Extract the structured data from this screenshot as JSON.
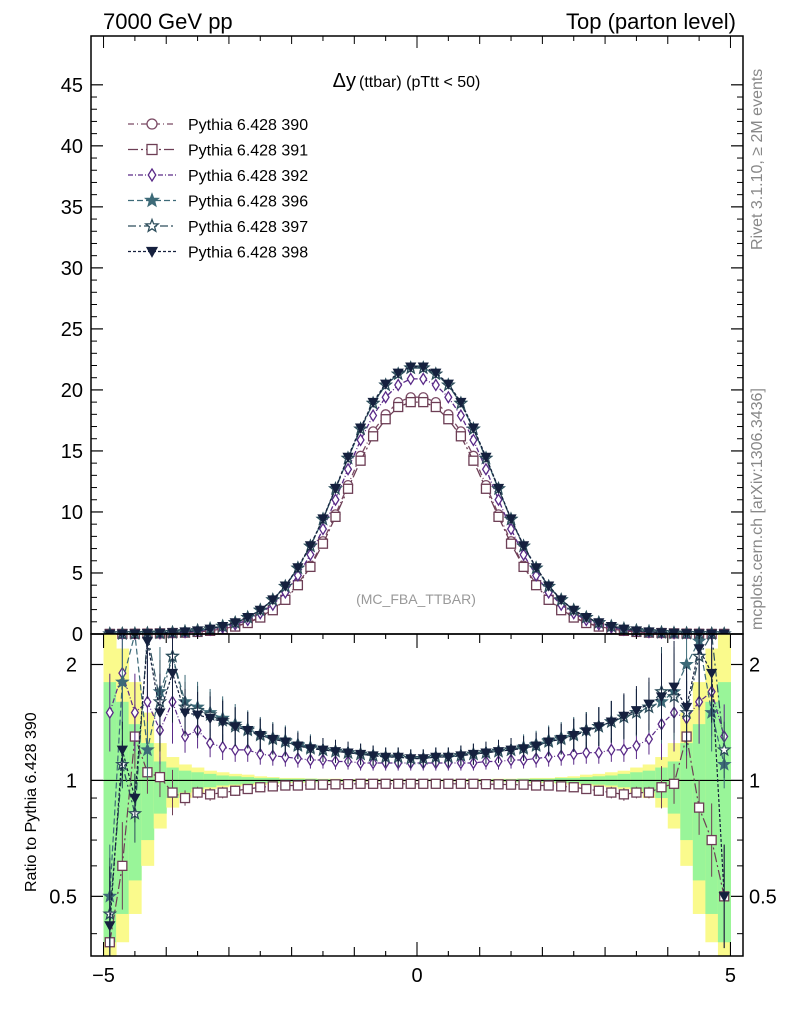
{
  "header": {
    "left": "7000 GeV pp",
    "right": "Top (parton level)"
  },
  "side": {
    "rivet": "Rivet 3.1.10, ≥ 2M events",
    "mcplots": "mcplots.cern.ch [arXiv:1306.3436]"
  },
  "chart_data": [
    {
      "type": "line",
      "title": "Δy (ttbar) (pTtt < 50)",
      "title_main": "Δy",
      "title_sub": "(ttbar) (pTtt < 50)",
      "watermark": "(MC_FBA_TTBAR)",
      "xlim": [
        -5.2,
        5.2
      ],
      "ylim": [
        0,
        49
      ],
      "xticks": [
        -5,
        0,
        5
      ],
      "yticks": [
        0,
        5,
        10,
        15,
        20,
        25,
        30,
        35,
        40,
        45
      ],
      "ytick_labels": [
        "0",
        "5",
        "10",
        "15",
        "20",
        "25",
        "30",
        "35",
        "40",
        "45"
      ],
      "legend_position": "top-left",
      "x": [
        -4.9,
        -4.7,
        -4.5,
        -4.3,
        -4.1,
        -3.9,
        -3.7,
        -3.5,
        -3.3,
        -3.1,
        -2.9,
        -2.7,
        -2.5,
        -2.3,
        -2.1,
        -1.9,
        -1.7,
        -1.5,
        -1.3,
        -1.1,
        -0.9,
        -0.7,
        -0.5,
        -0.3,
        -0.1,
        0.1,
        0.3,
        0.5,
        0.7,
        0.9,
        1.1,
        1.3,
        1.5,
        1.7,
        1.9,
        2.1,
        2.3,
        2.5,
        2.7,
        2.9,
        3.1,
        3.3,
        3.5,
        3.7,
        3.9,
        4.1,
        4.3,
        4.5,
        4.7,
        4.9
      ],
      "series": [
        {
          "name": "Pythia 6.428 390",
          "color": "#7a4a64",
          "marker": "circle-open",
          "dash": "6,3,1,3",
          "values": [
            0.01,
            0.01,
            0.02,
            0.03,
            0.05,
            0.08,
            0.12,
            0.18,
            0.27,
            0.42,
            0.63,
            0.93,
            1.4,
            2.0,
            2.9,
            4.1,
            5.6,
            7.6,
            9.8,
            12.2,
            14.6,
            16.6,
            18.0,
            19.0,
            19.4,
            19.4,
            19.0,
            18.0,
            16.6,
            14.6,
            12.2,
            9.8,
            7.6,
            5.6,
            4.1,
            2.9,
            2.0,
            1.4,
            0.93,
            0.63,
            0.42,
            0.27,
            0.18,
            0.12,
            0.08,
            0.05,
            0.03,
            0.02,
            0.01,
            0.01
          ]
        },
        {
          "name": "Pythia 6.428 391",
          "color": "#6d3e55",
          "marker": "square-open",
          "dash": "10,3,2,3",
          "values": [
            0.01,
            0.01,
            0.02,
            0.03,
            0.05,
            0.08,
            0.11,
            0.17,
            0.26,
            0.4,
            0.61,
            0.9,
            1.35,
            1.95,
            2.8,
            4.0,
            5.5,
            7.4,
            9.6,
            11.9,
            14.2,
            16.2,
            17.6,
            18.6,
            19.0,
            19.0,
            18.6,
            17.6,
            16.2,
            14.2,
            11.9,
            9.6,
            7.4,
            5.5,
            4.0,
            2.8,
            1.95,
            1.35,
            0.9,
            0.61,
            0.4,
            0.26,
            0.17,
            0.11,
            0.08,
            0.05,
            0.03,
            0.02,
            0.01,
            0.01
          ]
        },
        {
          "name": "Pythia 6.428 392",
          "color": "#5a2a88",
          "marker": "diamond-open",
          "dash": "5,2,1,2",
          "values": [
            0.01,
            0.01,
            0.02,
            0.04,
            0.06,
            0.1,
            0.15,
            0.23,
            0.35,
            0.53,
            0.79,
            1.15,
            1.7,
            2.4,
            3.4,
            4.8,
            6.5,
            8.6,
            11.0,
            13.5,
            15.9,
            17.9,
            19.4,
            20.4,
            20.9,
            20.9,
            20.4,
            19.4,
            17.9,
            15.9,
            13.5,
            11.0,
            8.6,
            6.5,
            4.8,
            3.4,
            2.4,
            1.7,
            1.15,
            0.79,
            0.53,
            0.35,
            0.23,
            0.15,
            0.1,
            0.06,
            0.04,
            0.02,
            0.01,
            0.01
          ]
        },
        {
          "name": "Pythia 6.428 396",
          "color": "#3d6a78",
          "marker": "star-filled",
          "dash": "6,3",
          "values": [
            0.01,
            0.02,
            0.03,
            0.05,
            0.08,
            0.12,
            0.19,
            0.28,
            0.42,
            0.63,
            0.93,
            1.35,
            1.95,
            2.8,
            3.9,
            5.4,
            7.2,
            9.4,
            11.9,
            14.4,
            16.8,
            18.9,
            20.4,
            21.3,
            21.8,
            21.8,
            21.3,
            20.4,
            18.9,
            16.8,
            14.4,
            11.9,
            9.4,
            7.2,
            5.4,
            3.9,
            2.8,
            1.95,
            1.35,
            0.93,
            0.63,
            0.42,
            0.28,
            0.19,
            0.12,
            0.08,
            0.05,
            0.03,
            0.02,
            0.01
          ]
        },
        {
          "name": "Pythia 6.428 397",
          "color": "#2e4e5c",
          "marker": "star-open",
          "dash": "8,3,2,3",
          "values": [
            0.01,
            0.02,
            0.03,
            0.05,
            0.08,
            0.12,
            0.19,
            0.28,
            0.42,
            0.63,
            0.93,
            1.36,
            1.96,
            2.8,
            3.9,
            5.4,
            7.2,
            9.4,
            11.9,
            14.4,
            16.8,
            18.9,
            20.4,
            21.3,
            21.8,
            21.8,
            21.3,
            20.4,
            18.9,
            16.8,
            14.4,
            11.9,
            9.4,
            7.2,
            5.4,
            3.9,
            2.8,
            1.96,
            1.36,
            0.93,
            0.63,
            0.42,
            0.28,
            0.19,
            0.12,
            0.08,
            0.05,
            0.03,
            0.02,
            0.01
          ]
        },
        {
          "name": "Pythia 6.428 398",
          "color": "#15203e",
          "marker": "triangle-down-filled",
          "dash": "3,2",
          "values": [
            0.01,
            0.02,
            0.03,
            0.05,
            0.08,
            0.12,
            0.19,
            0.28,
            0.42,
            0.63,
            0.94,
            1.37,
            1.97,
            2.82,
            3.95,
            5.45,
            7.25,
            9.45,
            11.95,
            14.5,
            16.9,
            19.0,
            20.5,
            21.4,
            21.9,
            21.9,
            21.4,
            20.5,
            19.0,
            16.9,
            14.5,
            11.95,
            9.45,
            7.25,
            5.45,
            3.95,
            2.82,
            1.97,
            1.37,
            0.94,
            0.63,
            0.42,
            0.28,
            0.19,
            0.12,
            0.08,
            0.05,
            0.03,
            0.02,
            0.01
          ]
        }
      ]
    },
    {
      "type": "line",
      "ylabel": "Ratio to Pythia 6.428 390",
      "xlim": [
        -5.2,
        5.2
      ],
      "ylim": [
        0.35,
        2.4
      ],
      "log_y": true,
      "xticks": [
        -5,
        0,
        5
      ],
      "xtick_labels": [
        "−5",
        "0",
        "5"
      ],
      "yticks": [
        0.5,
        1,
        2
      ],
      "ytick_labels": [
        "0.5",
        "1",
        "2"
      ],
      "band_colors": {
        "inner": "#99f599",
        "outer": "#fafa8c"
      },
      "band": {
        "inner_lo": [
          0.38,
          0.45,
          0.55,
          0.7,
          0.82,
          0.9,
          0.93,
          0.95,
          0.96,
          0.97,
          0.975,
          0.98,
          0.985,
          0.985,
          0.99,
          0.99,
          0.99,
          0.992,
          0.993,
          0.994,
          0.995,
          0.995,
          0.996,
          0.996,
          0.996,
          0.996,
          0.996,
          0.996,
          0.995,
          0.995,
          0.994,
          0.993,
          0.992,
          0.99,
          0.99,
          0.99,
          0.985,
          0.985,
          0.98,
          0.975,
          0.97,
          0.96,
          0.95,
          0.93,
          0.9,
          0.82,
          0.7,
          0.55,
          0.45,
          0.38
        ],
        "inner_hi": [
          1.8,
          1.6,
          1.4,
          1.25,
          1.12,
          1.08,
          1.06,
          1.05,
          1.04,
          1.03,
          1.025,
          1.02,
          1.015,
          1.015,
          1.01,
          1.01,
          1.01,
          1.008,
          1.007,
          1.006,
          1.005,
          1.005,
          1.004,
          1.004,
          1.004,
          1.004,
          1.004,
          1.004,
          1.005,
          1.005,
          1.006,
          1.007,
          1.008,
          1.01,
          1.01,
          1.01,
          1.015,
          1.015,
          1.02,
          1.025,
          1.03,
          1.04,
          1.05,
          1.06,
          1.08,
          1.12,
          1.25,
          1.4,
          1.6,
          1.8
        ],
        "outer_lo": [
          0.3,
          0.38,
          0.45,
          0.6,
          0.75,
          0.85,
          0.9,
          0.93,
          0.95,
          0.96,
          0.965,
          0.97,
          0.975,
          0.98,
          0.985,
          0.985,
          0.988,
          0.99,
          0.99,
          0.992,
          0.992,
          0.993,
          0.994,
          0.994,
          0.995,
          0.995,
          0.994,
          0.994,
          0.993,
          0.992,
          0.992,
          0.99,
          0.99,
          0.988,
          0.985,
          0.985,
          0.98,
          0.975,
          0.97,
          0.965,
          0.96,
          0.95,
          0.93,
          0.9,
          0.85,
          0.75,
          0.6,
          0.45,
          0.38,
          0.3
        ],
        "outer_hi": [
          2.4,
          2.2,
          1.8,
          1.5,
          1.25,
          1.15,
          1.1,
          1.08,
          1.06,
          1.05,
          1.04,
          1.035,
          1.025,
          1.02,
          1.015,
          1.015,
          1.012,
          1.01,
          1.01,
          1.008,
          1.008,
          1.007,
          1.006,
          1.006,
          1.005,
          1.005,
          1.006,
          1.006,
          1.007,
          1.008,
          1.008,
          1.01,
          1.01,
          1.012,
          1.015,
          1.015,
          1.02,
          1.025,
          1.035,
          1.04,
          1.05,
          1.06,
          1.08,
          1.1,
          1.15,
          1.25,
          1.5,
          1.8,
          2.2,
          2.4
        ]
      },
      "series": [
        {
          "name": "Pythia 6.428 390",
          "values": [
            1,
            1,
            1,
            1,
            1,
            1,
            1,
            1,
            1,
            1,
            1,
            1,
            1,
            1,
            1,
            1,
            1,
            1,
            1,
            1,
            1,
            1,
            1,
            1,
            1,
            1,
            1,
            1,
            1,
            1,
            1,
            1,
            1,
            1,
            1,
            1,
            1,
            1,
            1,
            1,
            1,
            1,
            1,
            1,
            1,
            1,
            1,
            1,
            1,
            1
          ]
        },
        {
          "name": "Pythia 6.428 391",
          "values": [
            0.38,
            0.6,
            1.3,
            1.05,
            1.02,
            0.93,
            0.9,
            0.93,
            0.92,
            0.93,
            0.94,
            0.95,
            0.96,
            0.965,
            0.97,
            0.97,
            0.975,
            0.975,
            0.977,
            0.978,
            0.98,
            0.98,
            0.98,
            0.98,
            0.98,
            0.98,
            0.98,
            0.98,
            0.98,
            0.98,
            0.978,
            0.977,
            0.975,
            0.975,
            0.97,
            0.97,
            0.965,
            0.96,
            0.95,
            0.94,
            0.93,
            0.92,
            0.93,
            0.93,
            0.96,
            0.98,
            1.3,
            0.85,
            0.7,
            0.5
          ]
        },
        {
          "name": "Pythia 6.428 392",
          "values": [
            1.5,
            1.9,
            1.5,
            1.6,
            1.35,
            1.6,
            1.3,
            1.35,
            1.25,
            1.22,
            1.2,
            1.2,
            1.17,
            1.16,
            1.15,
            1.14,
            1.13,
            1.13,
            1.12,
            1.12,
            1.11,
            1.11,
            1.11,
            1.11,
            1.11,
            1.11,
            1.11,
            1.11,
            1.11,
            1.11,
            1.12,
            1.12,
            1.13,
            1.13,
            1.14,
            1.15,
            1.16,
            1.17,
            1.18,
            1.18,
            1.2,
            1.2,
            1.23,
            1.28,
            1.4,
            1.5,
            1.45,
            1.6,
            1.7,
            1.3
          ]
        },
        {
          "name": "Pythia 6.428 396",
          "values": [
            0.5,
            1.8,
            2.6,
            1.2,
            1.7,
            2.1,
            1.6,
            1.55,
            1.5,
            1.45,
            1.4,
            1.36,
            1.32,
            1.29,
            1.27,
            1.24,
            1.22,
            1.2,
            1.19,
            1.18,
            1.17,
            1.16,
            1.15,
            1.15,
            1.14,
            1.14,
            1.15,
            1.15,
            1.16,
            1.17,
            1.18,
            1.19,
            1.2,
            1.22,
            1.24,
            1.27,
            1.29,
            1.32,
            1.35,
            1.38,
            1.42,
            1.46,
            1.5,
            1.55,
            1.6,
            1.7,
            2.0,
            2.3,
            1.5,
            1.1
          ]
        },
        {
          "name": "Pythia 6.428 397",
          "values": [
            0.45,
            1.1,
            0.82,
            2.5,
            1.6,
            2.1,
            1.55,
            1.52,
            1.48,
            1.43,
            1.38,
            1.35,
            1.31,
            1.28,
            1.26,
            1.23,
            1.21,
            1.2,
            1.19,
            1.18,
            1.17,
            1.16,
            1.15,
            1.15,
            1.14,
            1.14,
            1.15,
            1.15,
            1.16,
            1.17,
            1.18,
            1.19,
            1.2,
            1.21,
            1.23,
            1.26,
            1.28,
            1.31,
            1.35,
            1.38,
            1.42,
            1.46,
            1.5,
            1.55,
            1.7,
            1.65,
            1.5,
            2.1,
            2.5,
            1.2
          ]
        },
        {
          "name": "Pythia 6.428 398",
          "values": [
            0.42,
            1.2,
            0.9,
            2.3,
            1.5,
            1.9,
            1.5,
            1.48,
            1.45,
            1.42,
            1.38,
            1.35,
            1.31,
            1.28,
            1.26,
            1.23,
            1.21,
            1.2,
            1.19,
            1.18,
            1.17,
            1.16,
            1.15,
            1.15,
            1.14,
            1.14,
            1.15,
            1.15,
            1.16,
            1.17,
            1.18,
            1.19,
            1.2,
            1.21,
            1.23,
            1.26,
            1.28,
            1.31,
            1.34,
            1.38,
            1.42,
            1.47,
            1.52,
            1.58,
            1.65,
            1.75,
            1.55,
            2.2,
            1.9,
            0.5
          ]
        }
      ]
    }
  ]
}
